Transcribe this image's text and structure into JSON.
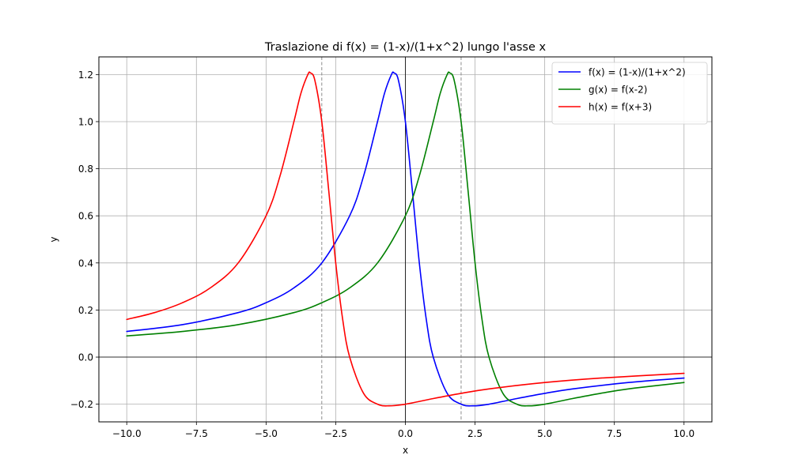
{
  "chart_data": {
    "type": "line",
    "title": "Traslazione di f(x) = (1-x)/(1+x^2) lungo l'asse x",
    "xlabel": "x",
    "ylabel": "y",
    "xlim": [
      -11,
      11
    ],
    "ylim": [
      -0.275,
      1.275
    ],
    "xticks": [
      -10.0,
      -7.5,
      -5.0,
      -2.5,
      0.0,
      2.5,
      5.0,
      7.5,
      10.0
    ],
    "xtick_labels": [
      "−10.0",
      "−7.5",
      "−5.0",
      "−2.5",
      "0.0",
      "2.5",
      "5.0",
      "7.5",
      "10.0"
    ],
    "yticks": [
      -0.2,
      0.0,
      0.2,
      0.4,
      0.6,
      0.8,
      1.0,
      1.2
    ],
    "ytick_labels": [
      "−0.2",
      "0.0",
      "0.2",
      "0.4",
      "0.6",
      "0.8",
      "1.0",
      "1.2"
    ],
    "grid": true,
    "legend_position": "top-right",
    "reference_lines": {
      "horizontal_solid": [
        0
      ],
      "vertical_solid": [
        0
      ],
      "vertical_dashed": [
        -3,
        2
      ]
    },
    "series": [
      {
        "name": "f(x) = (1-x)/(1+x^2)",
        "color": "#0000ff",
        "x": [
          -10,
          -8,
          -6,
          -5,
          -4,
          -3,
          -2,
          -1.5,
          -1,
          -0.75,
          -0.5,
          -0.41,
          -0.25,
          0,
          0.25,
          0.5,
          0.75,
          1,
          1.5,
          2,
          2.41,
          3,
          4,
          5,
          6,
          8,
          10
        ],
        "y": [
          0.109,
          0.138,
          0.189,
          0.231,
          0.294,
          0.4,
          0.6,
          0.769,
          1.0,
          1.12,
          1.2,
          1.207,
          1.176,
          1.0,
          0.706,
          0.4,
          0.16,
          0.0,
          -0.154,
          -0.2,
          -0.207,
          -0.2,
          -0.176,
          -0.154,
          -0.135,
          -0.108,
          -0.089
        ]
      },
      {
        "name": "g(x) = f(x-2)",
        "color": "#008000",
        "x": [
          -10,
          -8,
          -6,
          -4,
          -3,
          -2,
          -1,
          0,
          0.5,
          1,
          1.25,
          1.5,
          1.59,
          1.75,
          2,
          2.25,
          2.5,
          2.75,
          3,
          3.5,
          4,
          4.41,
          5,
          6,
          7,
          8,
          10
        ],
        "y": [
          0.09,
          0.109,
          0.138,
          0.189,
          0.231,
          0.294,
          0.4,
          0.6,
          0.769,
          1.0,
          1.12,
          1.2,
          1.207,
          1.176,
          1.0,
          0.706,
          0.4,
          0.16,
          0.0,
          -0.154,
          -0.2,
          -0.207,
          -0.2,
          -0.176,
          -0.154,
          -0.135,
          -0.108
        ]
      },
      {
        "name": "h(x) = f(x+3)",
        "color": "#ff0000",
        "x": [
          -10,
          -9,
          -8,
          -7,
          -6,
          -5,
          -4.5,
          -4,
          -3.75,
          -3.5,
          -3.41,
          -3.25,
          -3,
          -2.75,
          -2.5,
          -2.25,
          -2,
          -1.5,
          -1,
          -0.59,
          0,
          1,
          2,
          3,
          5,
          7,
          10
        ],
        "y": [
          0.16,
          0.189,
          0.231,
          0.294,
          0.4,
          0.6,
          0.769,
          1.0,
          1.12,
          1.2,
          1.207,
          1.176,
          1.0,
          0.706,
          0.4,
          0.16,
          0.0,
          -0.154,
          -0.2,
          -0.207,
          -0.2,
          -0.176,
          -0.154,
          -0.135,
          -0.108,
          -0.089,
          -0.069
        ]
      }
    ]
  }
}
